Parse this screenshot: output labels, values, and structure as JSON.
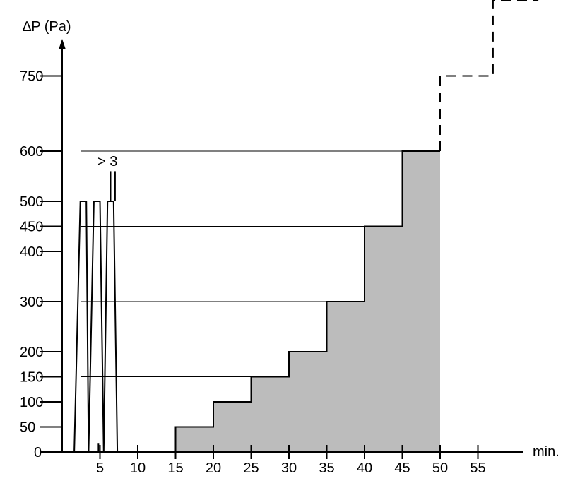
{
  "chart_data": {
    "type": "line",
    "title": "",
    "ylabel": "∆P (Pa)",
    "xlabel": "min.",
    "xlim": [
      0,
      60
    ],
    "ylim": [
      0,
      800
    ],
    "x_ticks": [
      5,
      10,
      15,
      20,
      25,
      30,
      35,
      40,
      45,
      50,
      55
    ],
    "y_ticks": [
      0,
      50,
      100,
      150,
      200,
      300,
      400,
      450,
      500,
      600,
      750
    ],
    "annotation": "> 3",
    "colors": {
      "fill": "#bcbcbc",
      "line": "#000000"
    },
    "pulses": {
      "name": "",
      "points": [
        [
          1.6,
          0
        ],
        [
          2.4,
          500
        ],
        [
          3.2,
          500
        ],
        [
          3.5,
          0
        ],
        [
          4.2,
          500
        ],
        [
          5,
          500
        ],
        [
          5.5,
          0
        ],
        [
          6,
          500
        ],
        [
          6.8,
          500
        ],
        [
          7.3,
          0
        ]
      ]
    },
    "step_profile": {
      "points": [
        [
          15,
          0
        ],
        [
          15,
          50
        ],
        [
          20,
          50
        ],
        [
          20,
          100
        ],
        [
          25,
          100
        ],
        [
          25,
          150
        ],
        [
          30,
          150
        ],
        [
          30,
          200
        ],
        [
          35,
          200
        ],
        [
          35,
          300
        ],
        [
          40,
          300
        ],
        [
          40,
          450
        ],
        [
          45,
          450
        ],
        [
          45,
          600
        ],
        [
          50,
          600
        ],
        [
          50,
          0
        ]
      ]
    },
    "dashed_continuation": {
      "points": [
        [
          50,
          600
        ],
        [
          50,
          750
        ],
        [
          57,
          750
        ],
        [
          57,
          900
        ],
        [
          63,
          900
        ]
      ]
    },
    "reference_lines": [
      {
        "y": 750,
        "x_start": 2.5,
        "x_end": 50
      },
      {
        "y": 600,
        "x_start": 2.5,
        "x_end": 45
      },
      {
        "y": 450,
        "x_start": 2.5,
        "x_end": 40
      },
      {
        "y": 300,
        "x_start": 2.5,
        "x_end": 35
      },
      {
        "y": 150,
        "x_start": 2.5,
        "x_end": 26.5
      }
    ]
  }
}
